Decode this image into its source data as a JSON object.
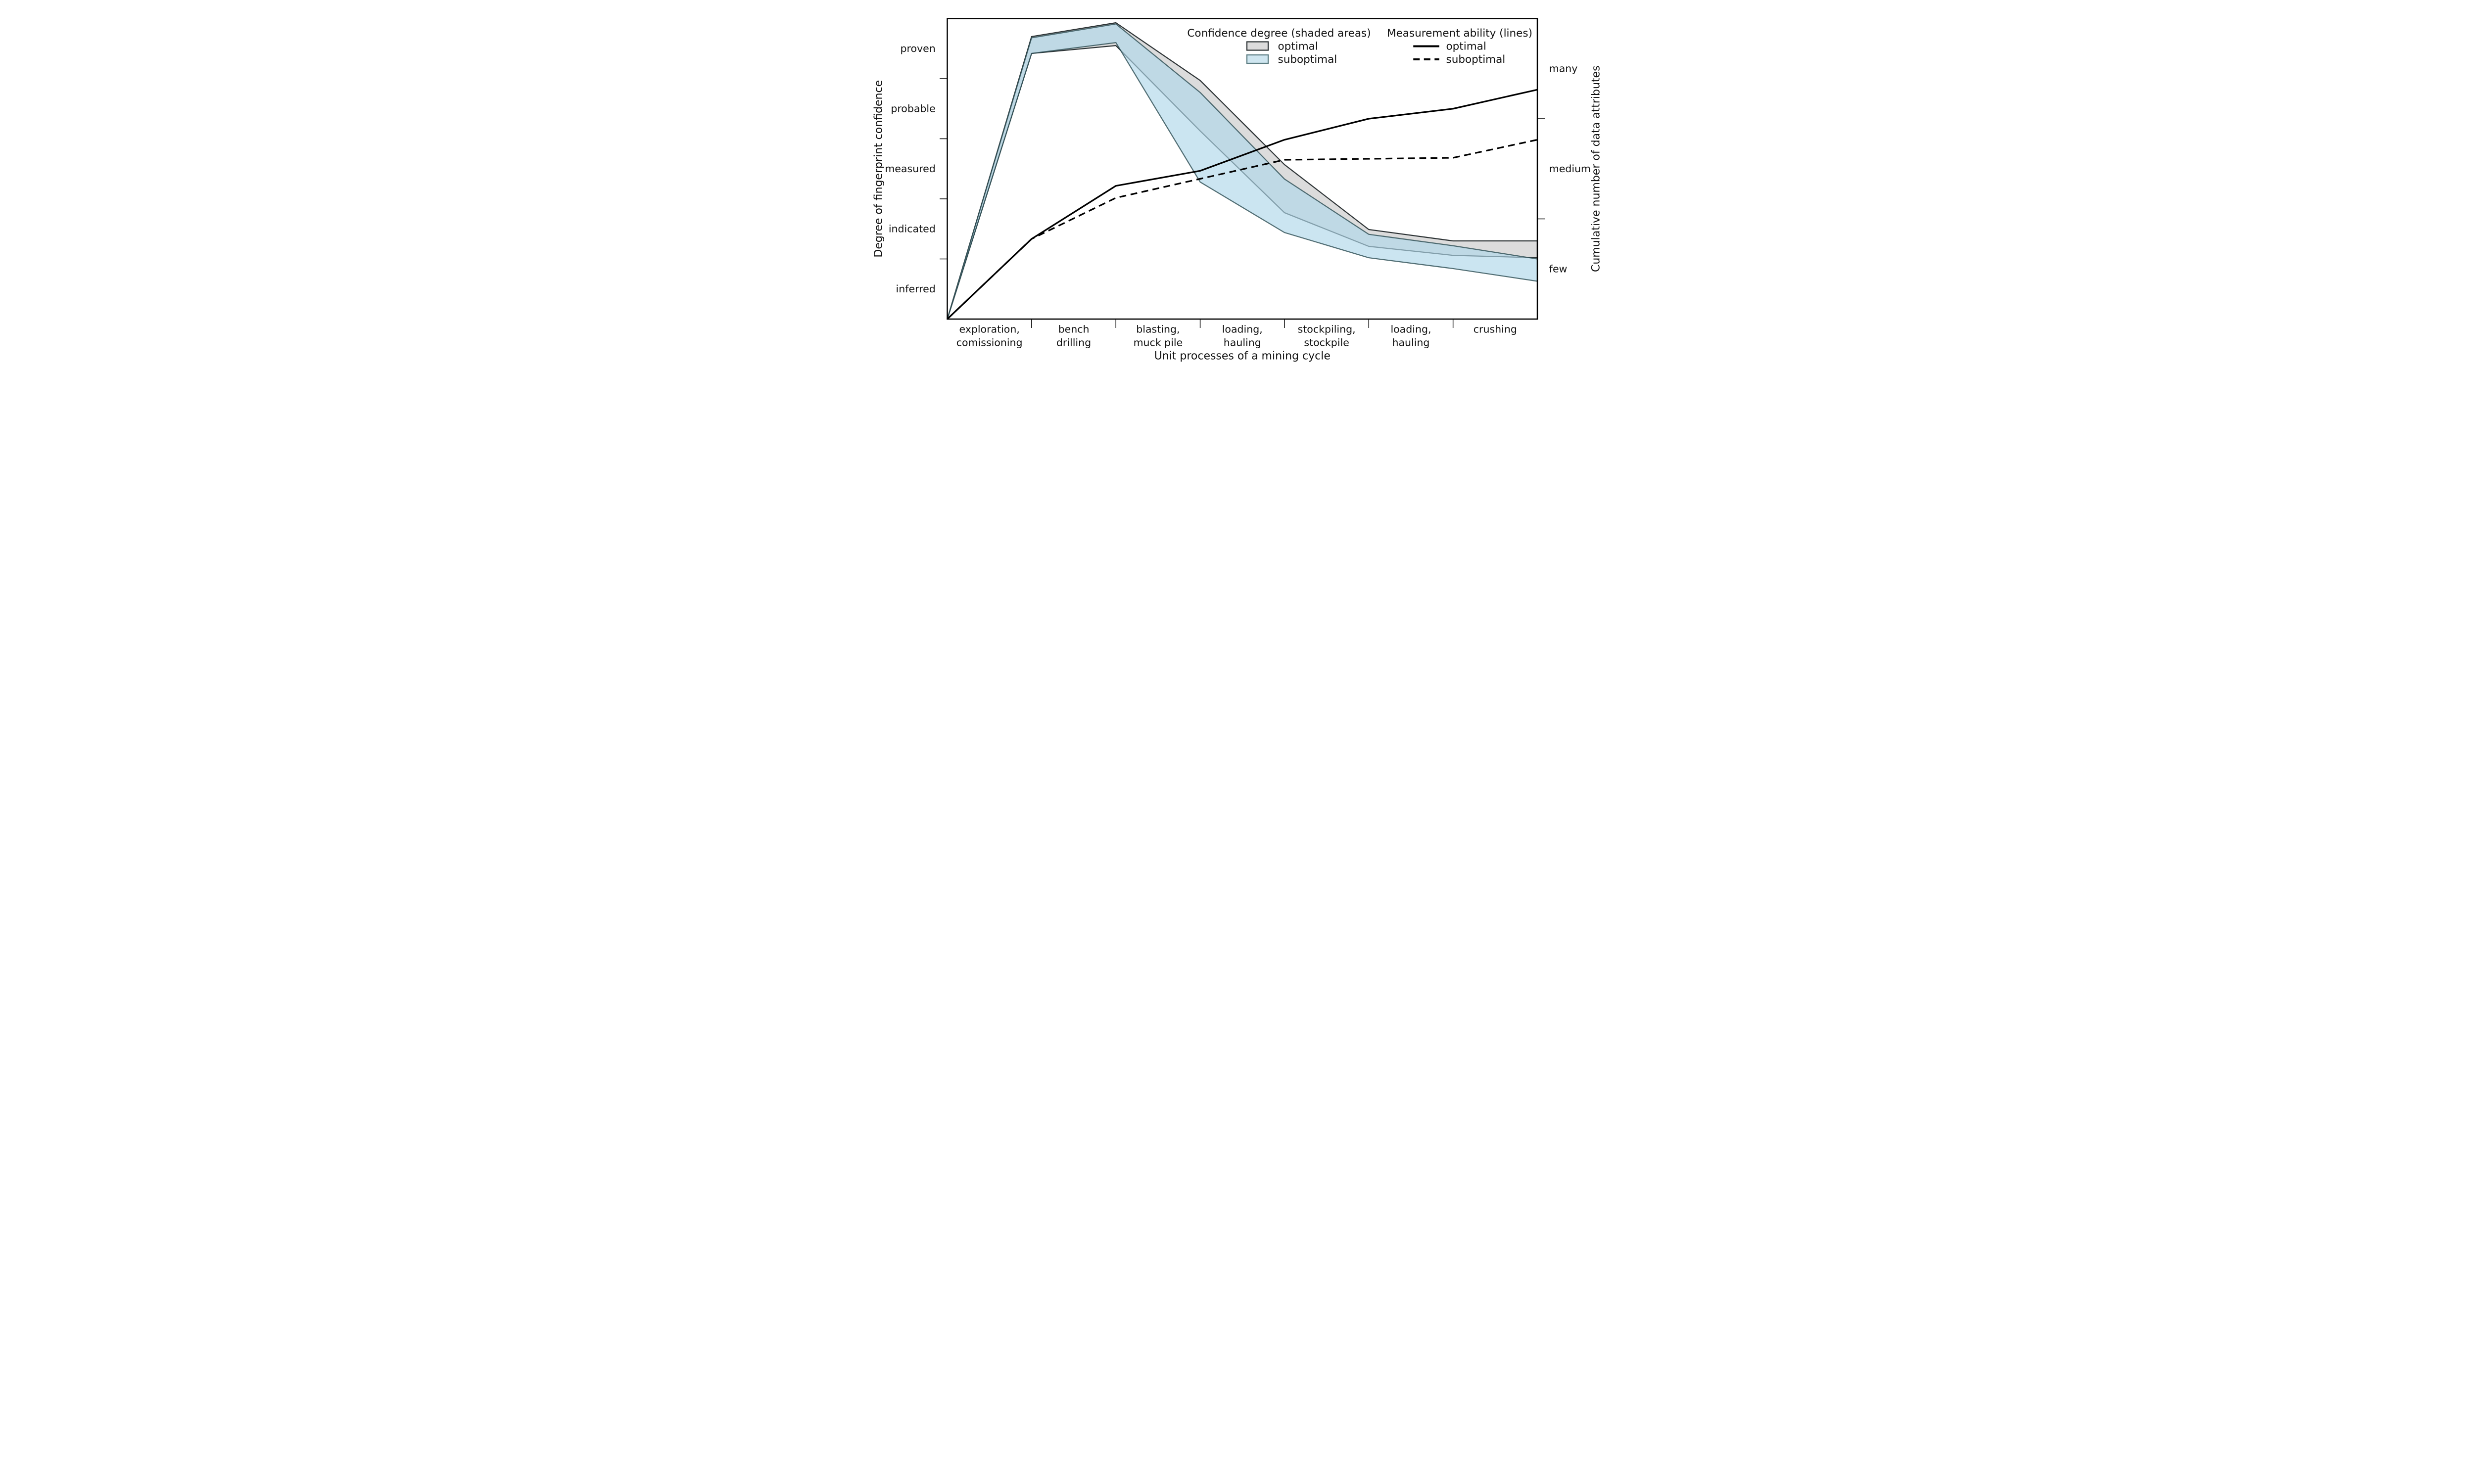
{
  "figure": {
    "background": "#ffffff",
    "frame_color": "#000000"
  },
  "legend": {
    "areas": {
      "title": "Confidence degree (shaded areas)",
      "items": [
        {
          "label": "optimal",
          "swatch_fill": "#dcdcdc",
          "swatch_edge": "#2e3436"
        },
        {
          "label": "suboptimal",
          "swatch_fill": "#cfe6f0",
          "swatch_edge": "#5c7d82"
        }
      ]
    },
    "lines": {
      "title": "Measurement ability (lines)",
      "items": [
        {
          "label": "optimal",
          "style": "solid"
        },
        {
          "label": "suboptimal",
          "style": "dashed"
        }
      ]
    }
  },
  "axes": {
    "x": {
      "title": "Unit processes of a mining cycle",
      "categories": [
        {
          "line1": "exploration,",
          "line2": "comissioning"
        },
        {
          "line1": "bench",
          "line2": "drilling"
        },
        {
          "line1": "blasting,",
          "line2": "muck pile"
        },
        {
          "line1": "loading,",
          "line2": "hauling"
        },
        {
          "line1": "stockpiling,",
          "line2": "stockpile"
        },
        {
          "line1": "loading,",
          "line2": "hauling"
        },
        {
          "line1": "crushing",
          "line2": ""
        }
      ]
    },
    "y_left": {
      "title": "Degree of fingerprint confidence",
      "labels": [
        "proven",
        "probable",
        "measured",
        "indicated",
        "inferred"
      ]
    },
    "y_right": {
      "title": "Cumulative number of data attributes",
      "labels": [
        "many",
        "medium",
        "few"
      ]
    }
  },
  "chart_data": {
    "type": "area",
    "title": "",
    "xlabel": "Unit processes of a mining cycle",
    "ylabel_left": "Degree of fingerprint confidence",
    "ylabel_right": "Cumulative number of data attributes",
    "x_note": "8 node positions: plot left edge, 6 internal category-boundary ticks, plot right edge; the 7 category labels sit between consecutive nodes",
    "x_positions": [
      0,
      1,
      2,
      3,
      4,
      5,
      6,
      7
    ],
    "y_left_scale": {
      "min": 0,
      "max": 5,
      "band_labels_bottom_to_top": [
        "inferred",
        "indicated",
        "measured",
        "probable",
        "proven"
      ]
    },
    "y_right_scale": {
      "min": 0,
      "max": 3,
      "band_labels_bottom_to_top": [
        "few",
        "medium",
        "many"
      ]
    },
    "bands": [
      {
        "name": "Confidence degree — optimal",
        "fill": "#dcdcdc",
        "edge": "#2e3436",
        "upper": [
          0,
          4.7,
          4.93,
          3.97,
          2.57,
          1.49,
          1.3,
          1.3
        ],
        "lower": [
          0,
          4.42,
          4.55,
          3.13,
          1.77,
          1.21,
          1.06,
          1.02
        ]
      },
      {
        "name": "Confidence degree — suboptimal",
        "fill": "rgba(175,215,233,0.65)",
        "edge": "rgba(44,76,82,0.80)",
        "upper": [
          0,
          4.68,
          4.91,
          3.77,
          2.33,
          1.41,
          1.22,
          1.0
        ],
        "lower": [
          0,
          4.42,
          4.6,
          2.28,
          1.44,
          1.02,
          0.84,
          0.63
        ]
      }
    ],
    "lines": [
      {
        "name": "Measurement ability — optimal",
        "style": "solid",
        "color": "#000000",
        "values": [
          0,
          0.8,
          1.33,
          1.48,
          1.79,
          2.0,
          2.1,
          2.29
        ]
      },
      {
        "name": "Measurement ability — suboptimal",
        "style": "dashed",
        "color": "#000000",
        "values": [
          0,
          0.8,
          1.21,
          1.4,
          1.59,
          1.6,
          1.61,
          1.79
        ]
      }
    ],
    "legend_position": "top center, inside plot",
    "grid": false
  }
}
